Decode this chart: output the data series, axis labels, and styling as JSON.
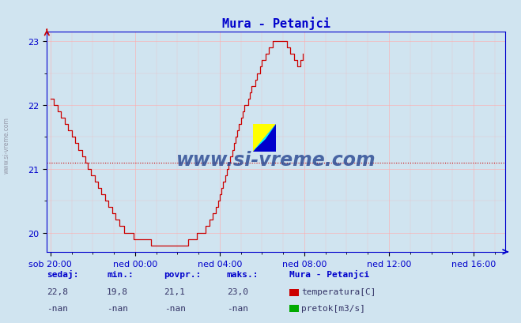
{
  "title": "Mura - Petanjci",
  "background_color": "#d0e4f0",
  "plot_bg_color": "#d0e4f0",
  "line_color": "#cc0000",
  "grid_color": "#ffaaaa",
  "axis_color": "#0000cc",
  "tick_color": "#0000cc",
  "ylim": [
    19.7,
    23.15
  ],
  "yticks": [
    20,
    21,
    22,
    23
  ],
  "x_tick_labels": [
    "sob 20:00",
    "ned 00:00",
    "ned 04:00",
    "ned 08:00",
    "ned 12:00",
    "ned 16:00"
  ],
  "x_tick_positions": [
    0,
    48,
    96,
    144,
    192,
    240
  ],
  "xlim": [
    -2,
    258
  ],
  "avg_line_y": 21.1,
  "avg_line_color": "#cc0000",
  "watermark_text": "www.si-vreme.com",
  "watermark_color": "#1a3a8a",
  "sedaj": "22,8",
  "min_val": "19,8",
  "povpr": "21,1",
  "maks": "23,0",
  "station_name": "Mura - Petanjci",
  "temp_label": "temperatura[C]",
  "pretok_label": "pretok[m3/s]",
  "temp_color": "#cc0000",
  "pretok_color": "#00aa00",
  "footer_label_color": "#0000cc",
  "footer_value_color": "#333366",
  "left_watermark": "www.si-vreme.com",
  "temp_data": [
    22.1,
    22.1,
    22.0,
    22.0,
    21.9,
    21.9,
    21.8,
    21.8,
    21.7,
    21.7,
    21.6,
    21.6,
    21.5,
    21.5,
    21.4,
    21.4,
    21.3,
    21.3,
    21.2,
    21.2,
    21.1,
    21.0,
    21.0,
    20.9,
    20.9,
    20.8,
    20.8,
    20.7,
    20.7,
    20.6,
    20.6,
    20.5,
    20.5,
    20.4,
    20.4,
    20.3,
    20.3,
    20.2,
    20.2,
    20.1,
    20.1,
    20.1,
    20.0,
    20.0,
    20.0,
    20.0,
    20.0,
    19.9,
    19.9,
    19.9,
    19.9,
    19.9,
    19.9,
    19.9,
    19.9,
    19.9,
    19.9,
    19.8,
    19.8,
    19.8,
    19.8,
    19.8,
    19.8,
    19.8,
    19.8,
    19.8,
    19.8,
    19.8,
    19.8,
    19.8,
    19.8,
    19.8,
    19.8,
    19.8,
    19.8,
    19.8,
    19.8,
    19.8,
    19.9,
    19.9,
    19.9,
    19.9,
    19.9,
    20.0,
    20.0,
    20.0,
    20.0,
    20.0,
    20.1,
    20.1,
    20.2,
    20.2,
    20.3,
    20.3,
    20.4,
    20.5,
    20.6,
    20.7,
    20.8,
    20.9,
    21.0,
    21.1,
    21.2,
    21.3,
    21.4,
    21.5,
    21.6,
    21.7,
    21.8,
    21.9,
    22.0,
    22.0,
    22.1,
    22.2,
    22.3,
    22.3,
    22.4,
    22.5,
    22.5,
    22.6,
    22.7,
    22.7,
    22.8,
    22.8,
    22.9,
    22.9,
    23.0,
    23.0,
    23.0,
    23.0,
    23.0,
    23.0,
    23.0,
    23.0,
    22.9,
    22.9,
    22.8,
    22.8,
    22.7,
    22.7,
    22.6,
    22.6,
    22.7,
    22.8
  ]
}
